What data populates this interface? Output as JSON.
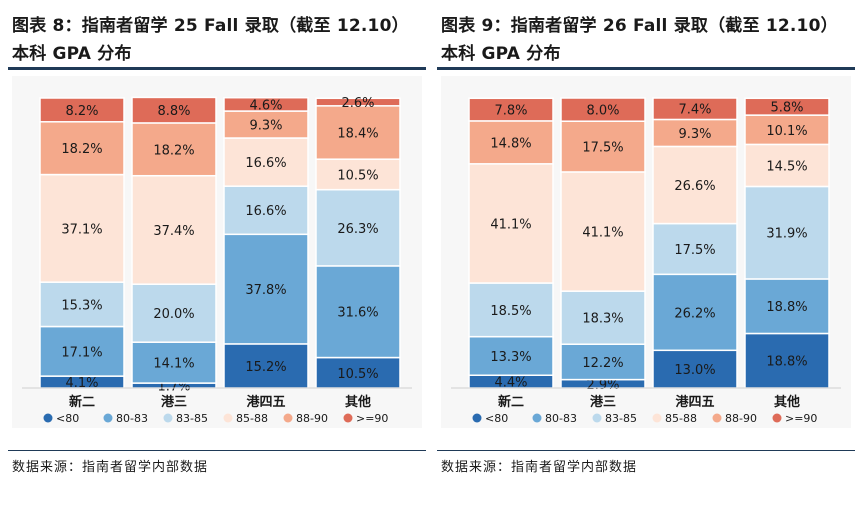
{
  "colors": {
    "lt80": "#2a6bb0",
    "b80_83": "#6aa8d6",
    "b83_85": "#bcd9ec",
    "b85_88": "#fde4d7",
    "b88_90": "#f4a98b",
    "gte90": "#de6b58"
  },
  "legend": [
    {
      "label": "<80",
      "color_key": "lt80"
    },
    {
      "label": "80-83",
      "color_key": "b80_83"
    },
    {
      "label": "83-85",
      "color_key": "b83_85"
    },
    {
      "label": "85-88",
      "color_key": "b85_88"
    },
    {
      "label": "88-90",
      "color_key": "b88_90"
    },
    {
      "label": ">=90",
      "color_key": "gte90"
    }
  ],
  "chart_data": [
    {
      "type": "bar",
      "stacked": true,
      "normalized": true,
      "title": "图表 8：指南者留学 25 Fall 录取（截至 12.10）本科 GPA 分布",
      "title_lines": [
        "图表 8：指南者留学 25 Fall 录取（截至 12.10）",
        "本科 GPA 分布"
      ],
      "source": "数据来源：指南者留学内部数据",
      "categories": [
        "新二",
        "港三",
        "港四五",
        "其他"
      ],
      "ylim": [
        0,
        100
      ],
      "legend_position": "bottom",
      "grid": false,
      "series": [
        {
          "name": "<80",
          "values": [
            4.1,
            1.7,
            15.2,
            10.5
          ]
        },
        {
          "name": "80-83",
          "values": [
            17.1,
            14.1,
            37.8,
            31.6
          ]
        },
        {
          "name": "83-85",
          "values": [
            15.3,
            20.0,
            16.6,
            26.3
          ]
        },
        {
          "name": "85-88",
          "values": [
            37.1,
            37.4,
            16.6,
            10.5
          ]
        },
        {
          "name": "88-90",
          "values": [
            18.2,
            18.2,
            9.3,
            18.4
          ]
        },
        {
          "name": ">=90",
          "values": [
            8.2,
            8.8,
            4.6,
            2.6
          ]
        }
      ]
    },
    {
      "type": "bar",
      "stacked": true,
      "normalized": true,
      "title": "图表 9：指南者留学 26 Fall 录取（截至 12.10）本科 GPA 分布",
      "title_lines": [
        "图表 9：指南者留学 26 Fall 录取（截至 12.10）",
        "本科 GPA 分布"
      ],
      "source": "数据来源：指南者留学内部数据",
      "categories": [
        "新二",
        "港三",
        "港四五",
        "其他"
      ],
      "ylim": [
        0,
        100
      ],
      "legend_position": "bottom",
      "grid": false,
      "series": [
        {
          "name": "<80",
          "values": [
            4.4,
            2.9,
            13.0,
            18.8
          ]
        },
        {
          "name": "80-83",
          "values": [
            13.3,
            12.2,
            26.2,
            18.8
          ]
        },
        {
          "name": "83-85",
          "values": [
            18.5,
            18.3,
            17.5,
            31.9
          ]
        },
        {
          "name": "85-88",
          "values": [
            41.1,
            41.1,
            26.6,
            14.5
          ]
        },
        {
          "name": "88-90",
          "values": [
            14.8,
            17.5,
            9.3,
            10.1
          ]
        },
        {
          "name": ">=90",
          "values": [
            7.8,
            8.0,
            7.4,
            5.8
          ]
        }
      ]
    }
  ]
}
